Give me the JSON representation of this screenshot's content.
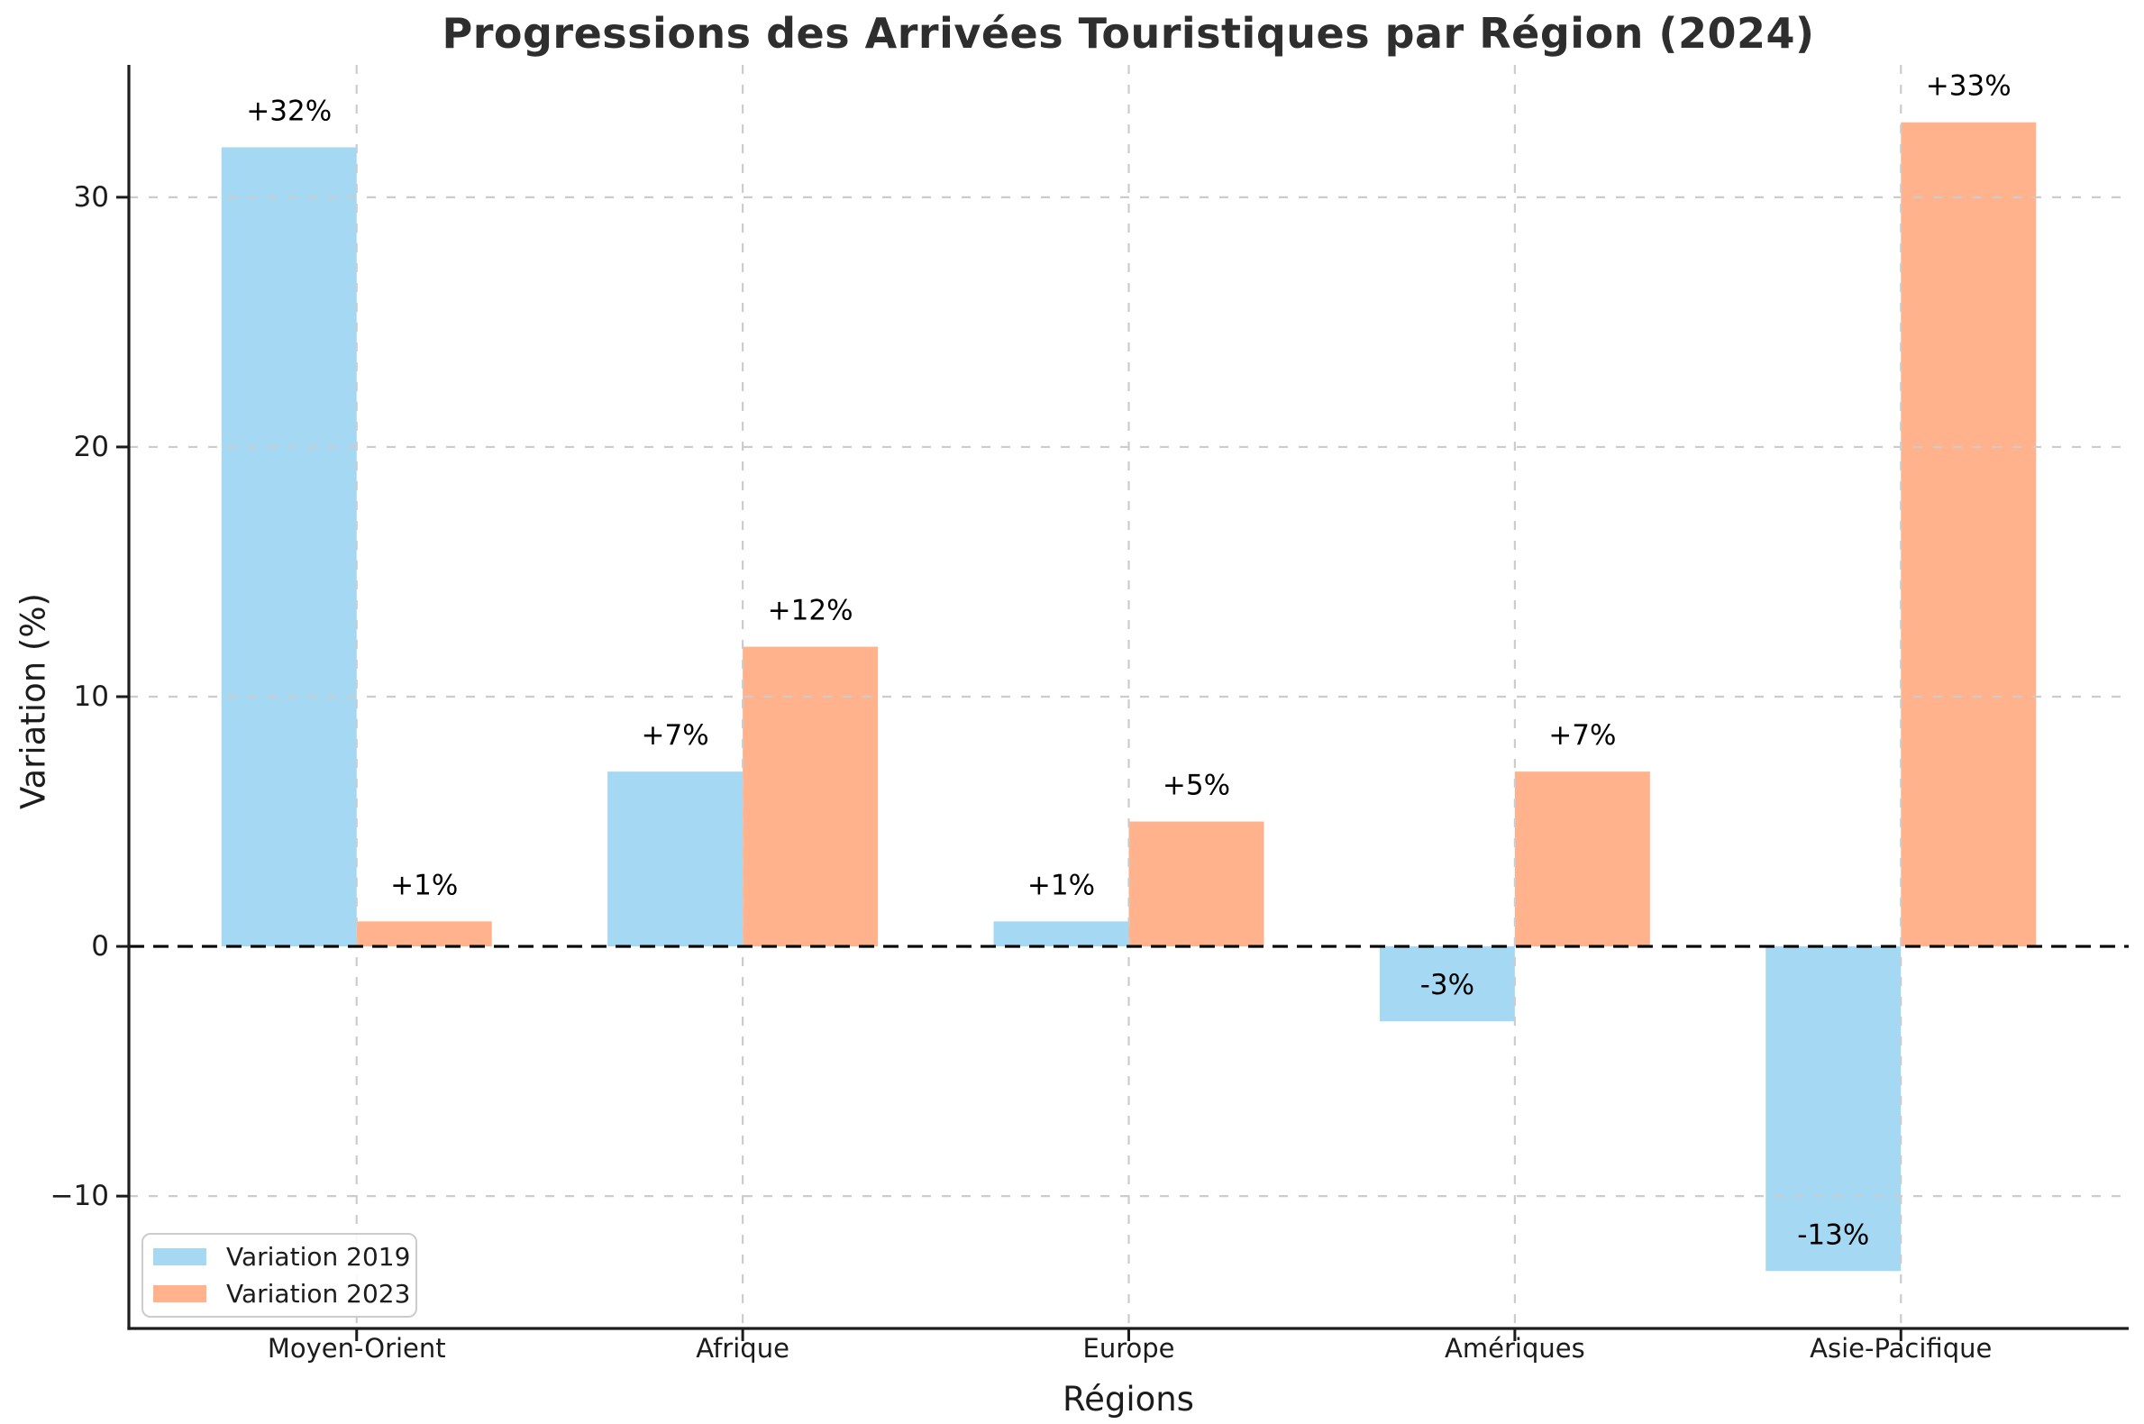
{
  "figure": {
    "background": "#ffffff"
  },
  "chart_data": {
    "type": "bar",
    "title": "Progressions des Arrivées Touristiques par Région (2024)",
    "xlabel": "Régions",
    "ylabel": "Variation (%)",
    "categories": [
      "Moyen-Orient",
      "Afrique",
      "Europe",
      "Amériques",
      "Asie-Pacifique"
    ],
    "series": [
      {
        "name": "Variation 2019",
        "color": "#a5d8f3",
        "values": [
          32,
          7,
          1,
          -3,
          -13
        ],
        "labels": [
          "+32%",
          "+7%",
          "+1%",
          "-3%",
          "-13%"
        ]
      },
      {
        "name": "Variation 2023",
        "color": "#ffb28c",
        "values": [
          1,
          12,
          5,
          7,
          33
        ],
        "labels": [
          "+1%",
          "+12%",
          "+5%",
          "+7%",
          "+33%"
        ]
      }
    ],
    "yticks": {
      "values": [
        -10,
        0,
        10,
        20,
        30
      ],
      "labels": [
        "−10",
        "0",
        "10",
        "20",
        "30"
      ]
    },
    "ylim": [
      -15.3,
      35.3
    ],
    "grid": "dashed-gray-above-bars",
    "zero_line": "dashed-black",
    "legend_position": "lower-left",
    "colors": {
      "grid": "#cccccc",
      "axis": "#1c1c1c",
      "value_label": "#000000",
      "zero_line": "#000000"
    }
  }
}
